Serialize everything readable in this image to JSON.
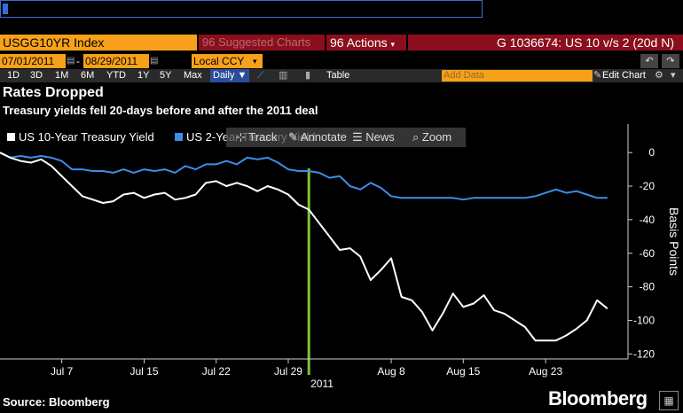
{
  "toolbar": {
    "ticker": "USGG10YR Index",
    "suggested": "96 Suggested Charts",
    "actions": "96 Actions",
    "graph_title": "G 1036674: US 10 v/s 2 (20d N)",
    "start_date": "07/01/2011",
    "end_date": "08/29/2011",
    "currency": "Local CCY",
    "periods": [
      "1D",
      "3D",
      "1M",
      "6M",
      "YTD",
      "1Y",
      "5Y",
      "Max"
    ],
    "frequency": "Daily",
    "table_label": "Table",
    "add_data_placeholder": "Add Data",
    "edit_chart_label": "Edit Chart"
  },
  "chart_tools": {
    "track": "Track",
    "annotate": "Annotate",
    "news": "News",
    "zoom": "Zoom"
  },
  "header": {
    "title": "Rates Dropped",
    "subtitle": "Treasury yields fell 20-days before and after the 2011 deal"
  },
  "footer": {
    "source": "Source: Bloomberg",
    "brand": "Bloomberg"
  },
  "colors": {
    "ten_year": "#ffffff",
    "two_year": "#3d8ee8",
    "marker": "#7ec23a",
    "orange": "#f7a11a",
    "red": "#8b0e1c"
  },
  "chart_data": {
    "type": "line",
    "title": "Rates Dropped",
    "subtitle": "Treasury yields fell 20-days before and after the 2011 deal",
    "ylabel": "Basis Points",
    "xlabel": "2011",
    "x_ticks": [
      {
        "day": 7,
        "label": "Jul 7"
      },
      {
        "day": 15,
        "label": "Jul 15"
      },
      {
        "day": 22,
        "label": "Jul 22"
      },
      {
        "day": 29,
        "label": "Jul 29"
      },
      {
        "day": 39,
        "label": "Aug 8"
      },
      {
        "day": 46,
        "label": "Aug 15"
      },
      {
        "day": 54,
        "label": "Aug 23"
      }
    ],
    "x_range": [
      1,
      62
    ],
    "ylim": [
      -123,
      17
    ],
    "y_ticks": [
      0,
      -20,
      -40,
      -60,
      -80,
      -100,
      -120
    ],
    "vertical_marker_day": 31,
    "legend_position": "top-left",
    "series": [
      {
        "name": "US 10-Year Treasury Yield",
        "color": "#ffffff",
        "days": [
          1,
          2,
          3,
          4,
          5,
          6,
          7,
          8,
          9,
          10,
          11,
          12,
          13,
          14,
          15,
          16,
          17,
          18,
          19,
          20,
          21,
          22,
          23,
          24,
          25,
          26,
          27,
          28,
          29,
          30,
          31,
          32,
          33,
          34,
          35,
          36,
          37,
          38,
          39,
          40,
          41,
          42,
          43,
          44,
          45,
          46,
          47,
          48,
          49,
          50,
          51,
          52,
          53,
          54,
          55,
          56,
          57,
          58,
          59,
          60
        ],
        "values": [
          0,
          -3,
          -5,
          -6,
          -4,
          -8,
          -14,
          -20,
          -26,
          -28,
          -30,
          -29,
          -25,
          -24,
          -27,
          -25,
          -24,
          -28,
          -27,
          -25,
          -18,
          -17,
          -20,
          -18,
          -20,
          -23,
          -20,
          -22,
          -25,
          -31,
          -34,
          -42,
          -50,
          -58,
          -57,
          -62,
          -76,
          -70,
          -63,
          -86,
          -88,
          -95,
          -106,
          -96,
          -84,
          -92,
          -90,
          -85,
          -94,
          -96,
          -100,
          -104,
          -112,
          -112,
          -112,
          -109,
          -105,
          -100,
          -88,
          -93
        ]
      },
      {
        "name": "US 2-Year Treasury Yield",
        "color": "#3d8ee8",
        "days": [
          1,
          2,
          3,
          4,
          5,
          6,
          7,
          8,
          9,
          10,
          11,
          12,
          13,
          14,
          15,
          16,
          17,
          18,
          19,
          20,
          21,
          22,
          23,
          24,
          25,
          26,
          27,
          28,
          29,
          30,
          31,
          32,
          33,
          34,
          35,
          36,
          37,
          38,
          39,
          40,
          41,
          42,
          43,
          44,
          45,
          46,
          47,
          48,
          49,
          50,
          51,
          52,
          53,
          54,
          55,
          56,
          57,
          58,
          59,
          60
        ],
        "values": [
          0,
          -3,
          -2,
          -3,
          -2,
          -3,
          -5,
          -10,
          -10,
          -11,
          -11,
          -12,
          -10,
          -12,
          -10,
          -11,
          -10,
          -12,
          -8,
          -10,
          -7,
          -7,
          -5,
          -7,
          -3,
          -4,
          -3,
          -6,
          -10,
          -11,
          -11,
          -12,
          -15,
          -14,
          -20,
          -22,
          -18,
          -21,
          -26,
          -27,
          -27,
          -27,
          -27,
          -27,
          -27,
          -28,
          -27,
          -27,
          -27,
          -27,
          -27,
          -27,
          -26,
          -24,
          -22,
          -24,
          -23,
          -25,
          -27,
          -27
        ]
      }
    ]
  }
}
